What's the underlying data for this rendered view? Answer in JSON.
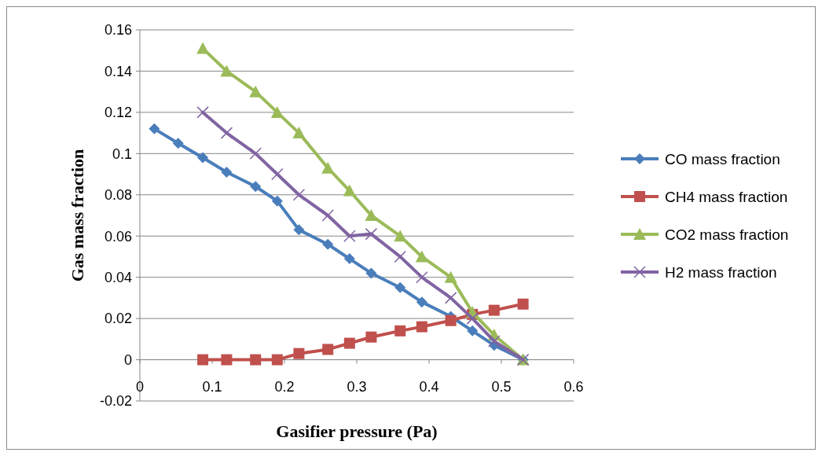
{
  "chart_data": {
    "type": "line",
    "xlabel": "Gasifier pressure (Pa)",
    "ylabel": "Gas mass fraction",
    "xlim": [
      0,
      0.6
    ],
    "xticks": [
      0,
      0.1,
      0.2,
      0.3,
      0.4,
      0.5,
      0.6
    ],
    "ylim": [
      -0.02,
      0.16
    ],
    "yticks": [
      -0.02,
      0,
      0.02,
      0.04,
      0.06,
      0.08,
      0.1,
      0.12,
      0.14,
      0.16
    ],
    "grid": "y",
    "legend": "right",
    "line_style": "solid",
    "series": [
      {
        "name": "CO mass fraction",
        "color": "#4a7ebb",
        "marker": "diamond",
        "x": [
          0.02,
          0.053,
          0.087,
          0.12,
          0.16,
          0.19,
          0.22,
          0.26,
          0.29,
          0.32,
          0.36,
          0.39,
          0.43,
          0.46,
          0.49,
          0.53
        ],
        "values": [
          0.112,
          0.105,
          0.098,
          0.091,
          0.084,
          0.077,
          0.063,
          0.056,
          0.049,
          0.042,
          0.035,
          0.028,
          0.021,
          0.014,
          0.007,
          0
        ]
      },
      {
        "name": "CH4 mass fraction",
        "color": "#c0504d",
        "marker": "square",
        "x": [
          0.087,
          0.12,
          0.16,
          0.19,
          0.22,
          0.26,
          0.29,
          0.32,
          0.36,
          0.39,
          0.43,
          0.46,
          0.49,
          0.53
        ],
        "values": [
          0,
          0,
          0,
          0,
          0.003,
          0.005,
          0.008,
          0.011,
          0.014,
          0.016,
          0.019,
          0.022,
          0.024,
          0.027
        ]
      },
      {
        "name": "CO2 mass fraction",
        "color": "#9bbb59",
        "marker": "triangle",
        "x": [
          0.087,
          0.12,
          0.16,
          0.19,
          0.22,
          0.26,
          0.29,
          0.32,
          0.36,
          0.39,
          0.43,
          0.46,
          0.49,
          0.53
        ],
        "values": [
          0.151,
          0.14,
          0.13,
          0.12,
          0.11,
          0.093,
          0.082,
          0.07,
          0.06,
          0.05,
          0.04,
          0.023,
          0.012,
          0
        ]
      },
      {
        "name": "H2 mass fraction",
        "color": "#8064a2",
        "marker": "cross",
        "x": [
          0.087,
          0.12,
          0.16,
          0.19,
          0.22,
          0.26,
          0.29,
          0.32,
          0.36,
          0.39,
          0.43,
          0.46,
          0.49,
          0.53
        ],
        "values": [
          0.12,
          0.11,
          0.1,
          0.09,
          0.08,
          0.07,
          0.06,
          0.061,
          0.05,
          0.04,
          0.03,
          0.02,
          0.009,
          0
        ]
      }
    ]
  }
}
